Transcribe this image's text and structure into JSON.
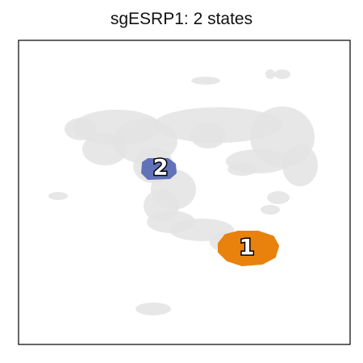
{
  "chart_data": {
    "type": "scatter",
    "title": "sgESRP1: 2 states",
    "xlabel": "",
    "ylabel": "",
    "grid": false,
    "background_color": "#e3e3e3",
    "states": [
      {
        "label": "1",
        "color": "#e8820c"
      },
      {
        "label": "2",
        "color": "#6272b9"
      }
    ]
  }
}
